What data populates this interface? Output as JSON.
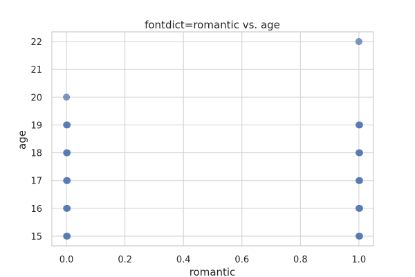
{
  "chart_data": {
    "type": "scatter",
    "title": "fontdict=romantic vs. age",
    "xlabel": "romantic",
    "ylabel": "age",
    "xlim": [
      -0.05,
      1.05
    ],
    "ylim": [
      14.65,
      22.35
    ],
    "xticks": [
      0.0,
      0.2,
      0.4,
      0.6,
      0.8,
      1.0
    ],
    "xtick_labels": [
      "0.0",
      "0.2",
      "0.4",
      "0.6",
      "0.8",
      "1.0"
    ],
    "yticks": [
      15,
      16,
      17,
      18,
      19,
      20,
      21,
      22
    ],
    "ytick_labels": [
      "15",
      "16",
      "17",
      "18",
      "19",
      "20",
      "21",
      "22"
    ],
    "grid": true,
    "color": "#4c72b0",
    "series": [
      {
        "x": [
          0,
          0,
          0,
          0,
          0,
          0,
          1,
          1,
          1,
          1,
          1,
          1
        ],
        "y": [
          15,
          16,
          17,
          18,
          19,
          20,
          15,
          16,
          17,
          18,
          19,
          22
        ]
      }
    ]
  }
}
